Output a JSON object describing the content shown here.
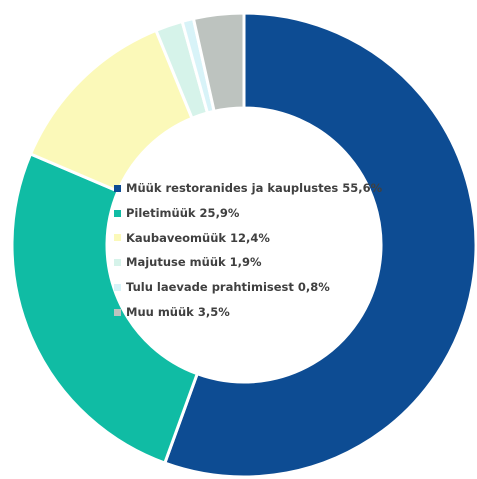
{
  "chart_data": {
    "type": "pie",
    "subtype": "donut",
    "categories": [
      "Müük restoranides ja kauplustes 55,6%",
      "Piletimüük 25,9%",
      "Kaubaveomüük 12,4%",
      "Majutuse müük 1,9%",
      "Tulu laevade prahtimisest 0,8%",
      "Muu müük 3,5%"
    ],
    "values": [
      55.6,
      25.9,
      12.4,
      1.9,
      0.8,
      3.5
    ],
    "colors": [
      "#0d4c93",
      "#10bca4",
      "#fbf9b9",
      "#d6f3ea",
      "#d8f3f8",
      "#bdc3bf"
    ],
    "legend_position": "center"
  }
}
